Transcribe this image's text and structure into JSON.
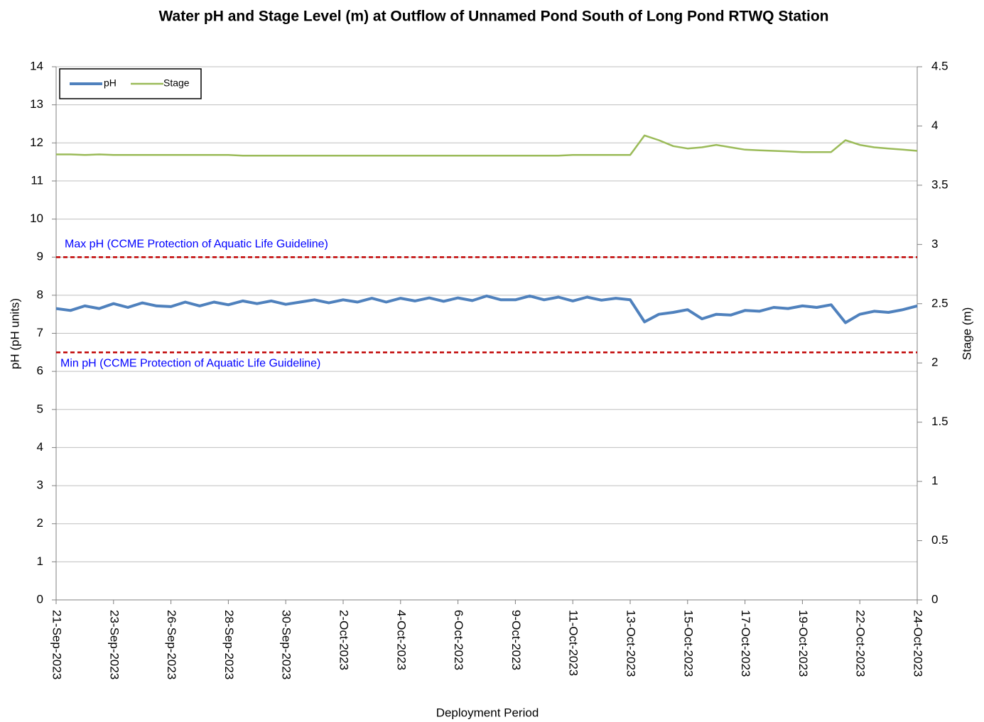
{
  "chart_data": {
    "type": "line",
    "title": "Water pH and Stage Level (m) at Outflow of Unnamed Pond South of Long Pond RTWQ Station",
    "x_label": "Deployment Period",
    "y_label": "pH (pH units)",
    "y2_label": "Stage (m)",
    "xticks": [
      "21-Sep-2023",
      "23-Sep-2023",
      "26-Sep-2023",
      "28-Sep-2023",
      "30-Sep-2023",
      "2-Oct-2023",
      "4-Oct-2023",
      "6-Oct-2023",
      "9-Oct-2023",
      "11-Oct-2023",
      "13-Oct-2023",
      "15-Oct-2023",
      "17-Oct-2023",
      "19-Oct-2023",
      "22-Oct-2023",
      "24-Oct-2023"
    ],
    "ylim": [
      0,
      14
    ],
    "yticks": [
      0,
      1,
      2,
      3,
      4,
      5,
      6,
      7,
      8,
      9,
      10,
      11,
      12,
      13,
      14
    ],
    "y2lim": [
      0,
      4.5
    ],
    "y2ticks": [
      0,
      0.5,
      1,
      1.5,
      2,
      2.5,
      3,
      3.5,
      4,
      4.5
    ],
    "grid": true,
    "legend": "upper left",
    "series": [
      {
        "name": "pH",
        "color": "#4f81bd",
        "values": [
          7.65,
          7.6,
          7.72,
          7.65,
          7.78,
          7.68,
          7.8,
          7.72,
          7.7,
          7.82,
          7.72,
          7.82,
          7.75,
          7.85,
          7.78,
          7.85,
          7.76,
          7.82,
          7.88,
          7.8,
          7.88,
          7.82,
          7.92,
          7.82,
          7.92,
          7.85,
          7.93,
          7.84,
          7.93,
          7.86,
          7.98,
          7.88,
          7.88,
          7.98,
          7.88,
          7.95,
          7.85,
          7.95,
          7.87,
          7.92,
          7.88,
          7.3,
          7.5,
          7.55,
          7.62,
          7.38,
          7.5,
          7.48,
          7.6,
          7.58,
          7.68,
          7.65,
          7.72,
          7.68,
          7.75,
          7.28,
          7.5,
          7.58,
          7.55,
          7.62,
          7.72
        ]
      },
      {
        "name": "Stage",
        "color": "#9bbb59",
        "axis": "y2",
        "values": [
          3.76,
          3.76,
          3.755,
          3.76,
          3.755,
          3.755,
          3.755,
          3.755,
          3.755,
          3.755,
          3.755,
          3.755,
          3.755,
          3.75,
          3.75,
          3.75,
          3.75,
          3.75,
          3.75,
          3.75,
          3.75,
          3.75,
          3.75,
          3.75,
          3.75,
          3.75,
          3.75,
          3.75,
          3.75,
          3.75,
          3.75,
          3.75,
          3.75,
          3.75,
          3.75,
          3.75,
          3.755,
          3.755,
          3.755,
          3.755,
          3.755,
          3.92,
          3.88,
          3.83,
          3.81,
          3.82,
          3.84,
          3.82,
          3.8,
          3.795,
          3.79,
          3.785,
          3.78,
          3.78,
          3.78,
          3.88,
          3.84,
          3.82,
          3.81,
          3.8,
          3.79
        ]
      }
    ],
    "reference_lines": [
      {
        "value": 9,
        "label": "Max pH (CCME Protection of Aquatic Life Guideline)",
        "color": "#c00000"
      },
      {
        "value": 6.5,
        "label": "Min pH (CCME Protection of Aquatic Life Guideline)",
        "color": "#c00000"
      }
    ]
  }
}
